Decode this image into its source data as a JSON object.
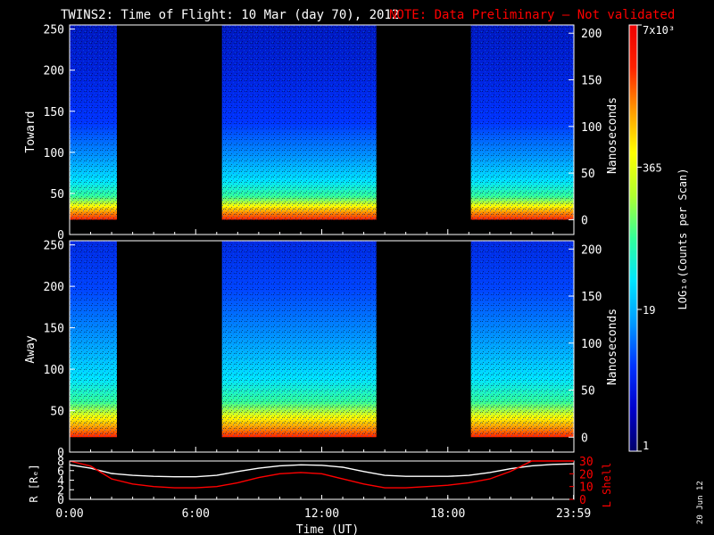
{
  "title": {
    "main": "TWINS2: Time of Flight: 10 Mar (day  70), 2012",
    "note": "NOTE: Data Preliminary – Not validated",
    "main_color": "#ffffff",
    "note_color": "#ff0000"
  },
  "colorbar": {
    "label": "LOG₁₀(Counts per Scan)",
    "ticks": [
      {
        "label": "7x10³",
        "value": 7000
      },
      {
        "label": "365",
        "value": 365
      },
      {
        "label": "19",
        "value": 19
      },
      {
        "label": "1",
        "value": 1
      }
    ],
    "colors": [
      "#00006a",
      "#0000cc",
      "#0033ff",
      "#0099ff",
      "#00e5ff",
      "#33ff99",
      "#b0ff2f",
      "#ffff00",
      "#ff9900",
      "#ff2200",
      "#ee0000"
    ]
  },
  "date_stamp": "20 Jun 12",
  "chart_data": [
    {
      "type": "heatmap",
      "panel": "Toward",
      "ylabel": "Toward",
      "ylabel_right": "Nanoseconds",
      "ylim": [
        0,
        255
      ],
      "yticks": [
        "0",
        "50",
        "100",
        "150",
        "200",
        "250"
      ],
      "yticks_right": [
        "0",
        "50",
        "100",
        "150",
        "200"
      ],
      "data_intervals_hours": [
        [
          0.0,
          2.25
        ],
        [
          7.25,
          14.6
        ],
        [
          19.1,
          24.0
        ]
      ],
      "fill_value": "no data (black)",
      "low_channel_peak": "red/orange band near channel 20-35",
      "description_values": {
        "background_level_counts": 1,
        "peak_counts": 7000
      }
    },
    {
      "type": "heatmap",
      "panel": "Away",
      "ylabel": "Away",
      "ylabel_right": "Nanoseconds",
      "ylim": [
        0,
        255
      ],
      "yticks": [
        "0",
        "50",
        "100",
        "150",
        "200",
        "250"
      ],
      "yticks_right": [
        "0",
        "50",
        "100",
        "150",
        "200"
      ],
      "data_intervals_hours": [
        [
          0.0,
          2.25
        ],
        [
          7.25,
          14.6
        ],
        [
          19.1,
          24.0
        ]
      ],
      "fill_value": "no data (black)",
      "low_channel_peak": "red/orange band near channel 20-35",
      "description_values": {
        "background_level_counts": 1,
        "peak_counts": 7000
      }
    },
    {
      "type": "line",
      "panel": "Ephemeris",
      "ylabel": "R [Rₑ]",
      "ylabel_right": "L Shell",
      "xlabel": "Time (UT)",
      "xticks": [
        "0:00",
        "6:00",
        "12:00",
        "18:00",
        "23:59"
      ],
      "x_hours": [
        0,
        1,
        2,
        3,
        4,
        5,
        6,
        7,
        8,
        9,
        10,
        11,
        12,
        13,
        14,
        15,
        16,
        17,
        18,
        19,
        20,
        21,
        22,
        23,
        24
      ],
      "ylim": [
        0,
        8
      ],
      "yticks": [
        "0",
        "2",
        "4",
        "6",
        "8"
      ],
      "ylim_right": [
        0,
        30
      ],
      "yticks_right": [
        "0",
        "10",
        "20",
        "30"
      ],
      "series": [
        {
          "name": "R",
          "color": "#ffffff",
          "values": [
            7.2,
            6.5,
            5.4,
            5.0,
            4.8,
            4.7,
            4.7,
            5.0,
            5.8,
            6.5,
            7.0,
            7.2,
            7.1,
            6.7,
            5.8,
            5.0,
            4.8,
            4.8,
            4.8,
            5.0,
            5.6,
            6.4,
            7.0,
            7.3,
            7.4
          ]
        },
        {
          "name": "L Shell",
          "color": "#ff0000",
          "values": [
            30,
            26,
            16,
            12,
            10,
            9,
            9,
            10,
            13,
            17,
            20,
            21,
            20,
            16,
            12,
            9,
            9,
            10,
            11,
            13,
            16,
            22,
            30,
            30,
            30
          ]
        }
      ]
    }
  ]
}
